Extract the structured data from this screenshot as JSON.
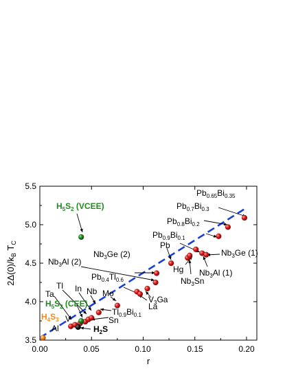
{
  "chart_data": {
    "type": "scatter",
    "title": "",
    "xlabel": "r",
    "ylabel": "2Δ(0)/k_B T_C",
    "xlim": [
      0.0,
      0.21
    ],
    "ylim": [
      3.5,
      5.5
    ],
    "xticks": [
      "0.00",
      "0.05",
      "0.10",
      "0.15",
      "0.20"
    ],
    "yticks": [
      "3.5",
      "4.0",
      "4.5",
      "5.0",
      "5.5"
    ],
    "colors": {
      "red_points": "#e02020",
      "fit_line": "#1a3fd8",
      "green_label": "#1f8a1f",
      "orange_label": "#f08a1a",
      "h2s_point": "#111111"
    },
    "fit_line": {
      "style": "dashed",
      "x": [
        0.0,
        0.2
      ],
      "y": [
        3.53,
        5.22
      ]
    },
    "points": [
      {
        "x": 0.003,
        "y": 3.53,
        "color": "orange",
        "label": "Al"
      },
      {
        "x": 0.03,
        "y": 3.68,
        "color": "red",
        "label": "V"
      },
      {
        "x": 0.034,
        "y": 3.7,
        "color": "red",
        "label": "Ta"
      },
      {
        "x": 0.039,
        "y": 3.72,
        "color": "red",
        "label": "Sn"
      },
      {
        "x": 0.044,
        "y": 3.74,
        "color": "red",
        "label": "Tl"
      },
      {
        "x": 0.047,
        "y": 3.77,
        "color": "red",
        "label": "In"
      },
      {
        "x": 0.05,
        "y": 3.79,
        "color": "red",
        "label": ""
      },
      {
        "x": 0.057,
        "y": 3.86,
        "color": "red",
        "label": "Nb"
      },
      {
        "x": 0.075,
        "y": 3.95,
        "color": "red",
        "label": "Mo"
      },
      {
        "x": 0.094,
        "y": 4.13,
        "color": "red",
        "label": "La"
      },
      {
        "x": 0.097,
        "y": 4.1,
        "color": "red",
        "label": ""
      },
      {
        "x": 0.104,
        "y": 4.17,
        "color": "red",
        "label": "V3Ga"
      },
      {
        "x": 0.112,
        "y": 4.25,
        "color": "red",
        "label": "Pb0.4Tl0.6"
      },
      {
        "x": 0.113,
        "y": 4.37,
        "color": "red",
        "label": "Nb3Ge (2)"
      },
      {
        "x": 0.127,
        "y": 4.5,
        "color": "red",
        "label": "Pb"
      },
      {
        "x": 0.143,
        "y": 4.57,
        "color": "red",
        "label": "Nb3Sn"
      },
      {
        "x": 0.145,
        "y": 4.6,
        "color": "red",
        "label": "Hg"
      },
      {
        "x": 0.151,
        "y": 4.68,
        "color": "red",
        "label": "Pb0.9Bi0.1"
      },
      {
        "x": 0.157,
        "y": 4.63,
        "color": "red",
        "label": "Nb3Al (1)"
      },
      {
        "x": 0.161,
        "y": 4.61,
        "color": "red",
        "label": "Nb3Ge (1)"
      },
      {
        "x": 0.173,
        "y": 4.85,
        "color": "red",
        "label": "Pb0.8Bi0.2"
      },
      {
        "x": 0.182,
        "y": 4.97,
        "color": "red",
        "label": "Pb0.7Bi0.3"
      },
      {
        "x": 0.198,
        "y": 5.09,
        "color": "red",
        "label": "Pb0.65Bi0.35"
      },
      {
        "x": 0.037,
        "y": 3.67,
        "color": "black",
        "label": "H2S"
      },
      {
        "x": 0.04,
        "y": 3.75,
        "color": "green",
        "label": "H5S2 (CEE)"
      },
      {
        "x": 0.04,
        "y": 4.84,
        "color": "green",
        "label": "H5S2 (VCEE)"
      }
    ],
    "labels": {
      "h5s2_vcee": {
        "main": "H",
        "s1": "5",
        "m2": "S",
        "s2": "2",
        "tail": " (VCEE)"
      },
      "h5s2_cee": {
        "main": "H",
        "s1": "5",
        "m2": "S",
        "s2": "2",
        "tail": " (CEE)"
      },
      "h4s3": {
        "main": "H",
        "s1": "4",
        "m2": "S",
        "s2": "3"
      },
      "h2s": {
        "main": "H",
        "s1": "2",
        "m2": "S"
      },
      "al": "Al",
      "v": "V",
      "ta": "Ta",
      "tl": "Tl",
      "in": "In",
      "nb": "Nb",
      "mo": "Mo",
      "sn": "Sn",
      "la": "La",
      "pb": "Pb",
      "hg": "Hg",
      "nb3ge2": {
        "a": "Nb",
        "s1": "3",
        "b": "Ge (2)"
      },
      "nb3al2": {
        "a": "Nb",
        "s1": "3",
        "b": "Al (2)"
      },
      "pb04tl06": {
        "a": "Pb",
        "s1": "0.4",
        "b": "Tl",
        "s2": "0.6"
      },
      "tl09bi01": {
        "a": "Tl",
        "s1": "0.9",
        "b": "Bi",
        "s2": "0.1"
      },
      "v3ga": {
        "a": "V",
        "s1": "3",
        "b": "Ga"
      },
      "nb3sn": {
        "a": "Nb",
        "s1": "3",
        "b": "Sn"
      },
      "nb3al1": {
        "a": "Nb",
        "s1": "3",
        "b": "Al (1)"
      },
      "nb3ge1": {
        "a": "Nb",
        "s1": "3",
        "b": "Ge (1)"
      },
      "pb09bi01": {
        "a": "Pb",
        "s1": "0.9",
        "b": "Bi",
        "s2": "0.1"
      },
      "pb08bi02": {
        "a": "Pb",
        "s1": "0.8",
        "b": "Bi",
        "s2": "0.2"
      },
      "pb07bi03": {
        "a": "Pb",
        "s1": "0.7",
        "b": "Bi",
        "s2": "0.3"
      },
      "pb065bi035": {
        "a": "Pb",
        "s1": "0.65",
        "b": "Bi",
        "s2": "0.35"
      }
    }
  }
}
